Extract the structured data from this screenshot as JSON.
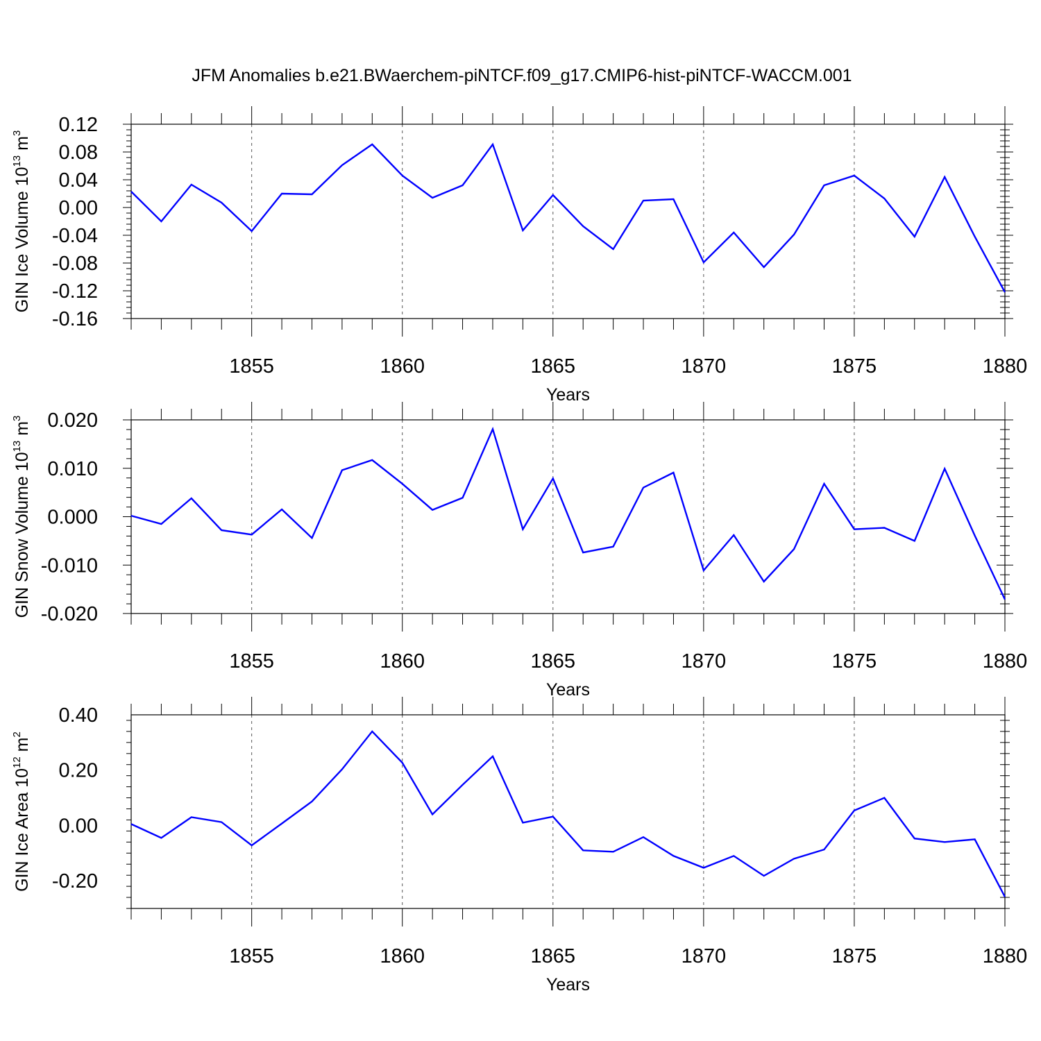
{
  "title": "JFM Anomalies b.e21.BWaerchem-piNTCF.f09_g17.CMIP6-hist-piNTCF-WACCM.001",
  "line_color": "#0000ff",
  "chart_data": [
    {
      "type": "line",
      "ylabel_main": "GIN Ice Volume 10",
      "ylabel_exp": "13",
      "ylabel_unit": " m",
      "ylabel_unit_exp": "3",
      "xlabel": "Years",
      "xlim": [
        1851,
        1880
      ],
      "ylim": [
        -0.16,
        0.12
      ],
      "yticks": [
        -0.16,
        -0.12,
        -0.08,
        -0.04,
        0.0,
        0.04,
        0.08,
        0.12
      ],
      "ytick_labels": [
        "-0.16",
        "-0.12",
        "-0.08",
        "-0.04",
        "0.00",
        "0.04",
        "0.08",
        "0.12"
      ],
      "xticks": [
        1855,
        1860,
        1865,
        1870,
        1875,
        1880
      ],
      "xtick_labels": [
        "1855",
        "1860",
        "1865",
        "1870",
        "1875",
        "1880"
      ],
      "x": [
        1851,
        1852,
        1853,
        1854,
        1855,
        1856,
        1857,
        1858,
        1859,
        1860,
        1861,
        1862,
        1863,
        1864,
        1865,
        1866,
        1867,
        1868,
        1869,
        1870,
        1871,
        1872,
        1873,
        1874,
        1875,
        1876,
        1877,
        1878,
        1879,
        1880
      ],
      "values": [
        0.023,
        -0.02,
        0.033,
        0.007,
        -0.034,
        0.02,
        0.019,
        0.061,
        0.091,
        0.046,
        0.014,
        0.032,
        0.091,
        -0.033,
        0.018,
        -0.027,
        -0.06,
        0.01,
        0.012,
        -0.079,
        -0.036,
        -0.086,
        -0.039,
        0.032,
        0.046,
        0.013,
        -0.042,
        0.044,
        -0.042,
        -0.122
      ]
    },
    {
      "type": "line",
      "ylabel_main": "GIN Snow Volume 10",
      "ylabel_exp": "13",
      "ylabel_unit": " m",
      "ylabel_unit_exp": "3",
      "xlabel": "Years",
      "xlim": [
        1851,
        1880
      ],
      "ylim": [
        -0.02,
        0.02
      ],
      "yticks": [
        -0.02,
        -0.01,
        0.0,
        0.01,
        0.02
      ],
      "ytick_labels": [
        "-0.020",
        "-0.010",
        "0.000",
        "0.010",
        "0.020"
      ],
      "xticks": [
        1855,
        1860,
        1865,
        1870,
        1875,
        1880
      ],
      "xtick_labels": [
        "1855",
        "1860",
        "1865",
        "1870",
        "1875",
        "1880"
      ],
      "x": [
        1851,
        1852,
        1853,
        1854,
        1855,
        1856,
        1857,
        1858,
        1859,
        1860,
        1861,
        1862,
        1863,
        1864,
        1865,
        1866,
        1867,
        1868,
        1869,
        1870,
        1871,
        1872,
        1873,
        1874,
        1875,
        1876,
        1877,
        1878,
        1879,
        1880
      ],
      "values": [
        0.0002,
        -0.0015,
        0.0038,
        -0.0028,
        -0.0037,
        0.0015,
        -0.0044,
        0.0096,
        0.0117,
        0.0068,
        0.0014,
        0.0039,
        0.0181,
        -0.0026,
        0.0079,
        -0.0074,
        -0.0062,
        0.006,
        0.0091,
        -0.0111,
        -0.0038,
        -0.0134,
        -0.0067,
        0.0068,
        -0.0026,
        -0.0023,
        -0.005,
        0.0099,
        -0.0039,
        -0.0171
      ]
    },
    {
      "type": "line",
      "ylabel_main": "GIN Ice Area 10",
      "ylabel_exp": "12",
      "ylabel_unit": " m",
      "ylabel_unit_exp": "2",
      "xlabel": "Years",
      "xlim": [
        1851,
        1880
      ],
      "ylim": [
        -0.3,
        0.4
      ],
      "yticks": [
        -0.2,
        0.0,
        0.2,
        0.4
      ],
      "ytick_labels": [
        "-0.20",
        "0.00",
        "0.20",
        "0.40"
      ],
      "xticks": [
        1855,
        1860,
        1865,
        1870,
        1875,
        1880
      ],
      "xtick_labels": [
        "1855",
        "1860",
        "1865",
        "1870",
        "1875",
        "1880"
      ],
      "x": [
        1851,
        1852,
        1853,
        1854,
        1855,
        1856,
        1857,
        1858,
        1859,
        1860,
        1861,
        1862,
        1863,
        1864,
        1865,
        1866,
        1867,
        1868,
        1869,
        1870,
        1871,
        1872,
        1873,
        1874,
        1875,
        1876,
        1877,
        1878,
        1879,
        1880
      ],
      "values": [
        0.005,
        -0.045,
        0.03,
        0.012,
        -0.072,
        0.007,
        0.087,
        0.203,
        0.34,
        0.227,
        0.04,
        0.147,
        0.25,
        0.01,
        0.032,
        -0.09,
        -0.095,
        -0.042,
        -0.11,
        -0.153,
        -0.11,
        -0.182,
        -0.12,
        -0.087,
        0.054,
        0.1,
        -0.047,
        -0.06,
        -0.05,
        -0.258
      ]
    }
  ]
}
